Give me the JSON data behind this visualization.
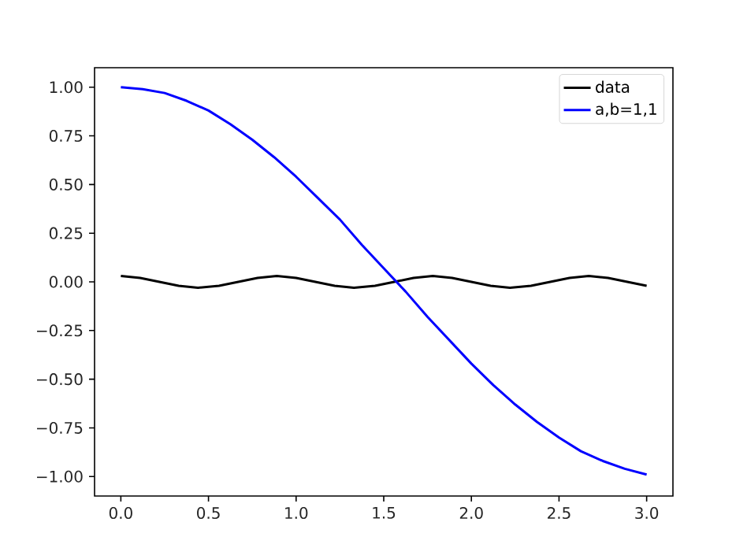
{
  "chart_data": {
    "type": "line",
    "xlim": [
      -0.15,
      3.15
    ],
    "ylim": [
      -1.1,
      1.1
    ],
    "xticks": [
      {
        "value": 0,
        "label": "0.0"
      },
      {
        "value": 0.5,
        "label": "0.5"
      },
      {
        "value": 1,
        "label": "1.0"
      },
      {
        "value": 1.5,
        "label": "1.5"
      },
      {
        "value": 2,
        "label": "2.0"
      },
      {
        "value": 2.5,
        "label": "2.5"
      },
      {
        "value": 3,
        "label": "3.0"
      }
    ],
    "yticks": [
      {
        "value": -1,
        "label": "−1.00"
      },
      {
        "value": -0.75,
        "label": "−0.75"
      },
      {
        "value": -0.5,
        "label": "−0.50"
      },
      {
        "value": -0.25,
        "label": "−0.25"
      },
      {
        "value": 0,
        "label": "0.00"
      },
      {
        "value": 0.25,
        "label": "0.25"
      },
      {
        "value": 0.5,
        "label": "0.50"
      },
      {
        "value": 0.75,
        "label": "0.75"
      },
      {
        "value": 1,
        "label": "1.00"
      }
    ],
    "legend": "top right",
    "grid": false,
    "marker": "none",
    "line_style": "solid",
    "series": [
      {
        "name": "data",
        "color": "#000000",
        "x": [
          0,
          0.11,
          0.22,
          0.33,
          0.44,
          0.56,
          0.67,
          0.78,
          0.89,
          1.0,
          1.11,
          1.22,
          1.33,
          1.45,
          1.56,
          1.67,
          1.78,
          1.89,
          2.0,
          2.11,
          2.22,
          2.34,
          2.45,
          2.56,
          2.67,
          2.78,
          2.89,
          3.0
        ],
        "values": [
          0.03,
          0.02,
          0.0,
          -0.02,
          -0.03,
          -0.02,
          0.0,
          0.02,
          0.03,
          0.02,
          0.0,
          -0.02,
          -0.03,
          -0.02,
          0.0,
          0.02,
          0.03,
          0.02,
          0.0,
          -0.02,
          -0.03,
          -0.02,
          0.0,
          0.02,
          0.03,
          0.02,
          0.0,
          -0.02
        ]
      },
      {
        "name": "a,b=1,1",
        "color": "#0000ff",
        "x": [
          0,
          0.125,
          0.25,
          0.375,
          0.5,
          0.625,
          0.75,
          0.875,
          1.0,
          1.125,
          1.25,
          1.375,
          1.5,
          1.625,
          1.75,
          1.875,
          2.0,
          2.125,
          2.25,
          2.375,
          2.5,
          2.625,
          2.75,
          2.875,
          3.0
        ],
        "values": [
          1.0,
          0.99,
          0.97,
          0.93,
          0.88,
          0.81,
          0.73,
          0.64,
          0.54,
          0.43,
          0.32,
          0.19,
          0.07,
          -0.05,
          -0.18,
          -0.3,
          -0.42,
          -0.53,
          -0.63,
          -0.72,
          -0.8,
          -0.87,
          -0.92,
          -0.96,
          -0.99
        ]
      }
    ]
  }
}
